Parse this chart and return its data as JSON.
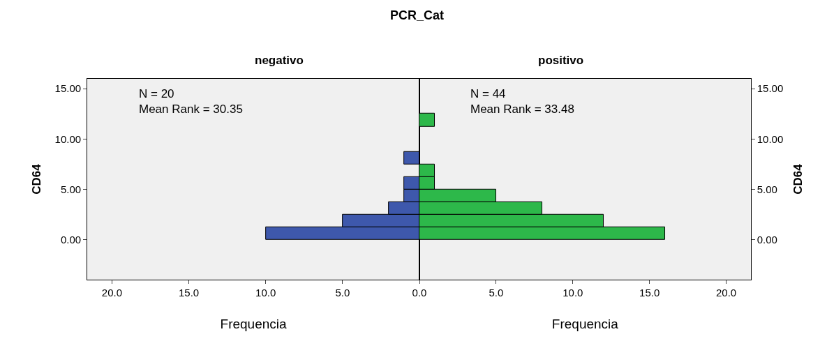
{
  "chart_data": [
    {
      "type": "histogram",
      "orientation": "horizontal",
      "title": "negativo",
      "xlabel": "Frequencia",
      "ylabel": "CD64",
      "color": "#3e58ac",
      "bins": [
        0,
        1.25,
        2.5,
        3.75,
        5,
        6.25,
        7.5,
        8.75,
        10,
        11.25,
        12.5
      ],
      "values": [
        10,
        5,
        2,
        1,
        1,
        0,
        1,
        0,
        0,
        0
      ],
      "xlim": [
        21.6,
        0
      ],
      "xticks": [
        {
          "value": 20,
          "label": "20.0"
        },
        {
          "value": 15,
          "label": "15.0"
        },
        {
          "value": 10,
          "label": "10.0"
        },
        {
          "value": 5,
          "label": "5.0"
        },
        {
          "value": 0,
          "label": null
        }
      ],
      "ylim": [
        -4,
        16
      ],
      "yticks": [
        {
          "value": 0,
          "label": "0.00"
        },
        {
          "value": 5,
          "label": "5.00"
        },
        {
          "value": 10,
          "label": "10.00"
        },
        {
          "value": 15,
          "label": "15.00"
        }
      ],
      "annotations": [
        "PCR_Cat",
        "N = 20\nMean Rank = 30.35"
      ],
      "grid": false
    },
    {
      "type": "histogram",
      "orientation": "horizontal",
      "title": "positivo",
      "xlabel": "Frequencia",
      "ylabel": "CD64",
      "color": "#2db84a",
      "bins": [
        0,
        1.25,
        2.5,
        3.75,
        5,
        6.25,
        7.5,
        8.75,
        10,
        11.25,
        12.5
      ],
      "values": [
        16,
        12,
        8,
        5,
        1,
        1,
        0,
        0,
        0,
        1
      ],
      "xlim": [
        0,
        21.6
      ],
      "xticks": [
        {
          "value": 0,
          "label": "0.0"
        },
        {
          "value": 5,
          "label": "5.0"
        },
        {
          "value": 10,
          "label": "10.0"
        },
        {
          "value": 15,
          "label": "15.0"
        },
        {
          "value": 20,
          "label": "20.0"
        }
      ],
      "ylim": [
        -4,
        16
      ],
      "yticks": [
        {
          "value": 0,
          "label": "0.00"
        },
        {
          "value": 5,
          "label": "5.00"
        },
        {
          "value": 10,
          "label": "10.00"
        },
        {
          "value": 15,
          "label": "15.00"
        }
      ],
      "annotations": [
        "N = 44\nMean Rank = 33.48"
      ],
      "grid": false
    }
  ]
}
